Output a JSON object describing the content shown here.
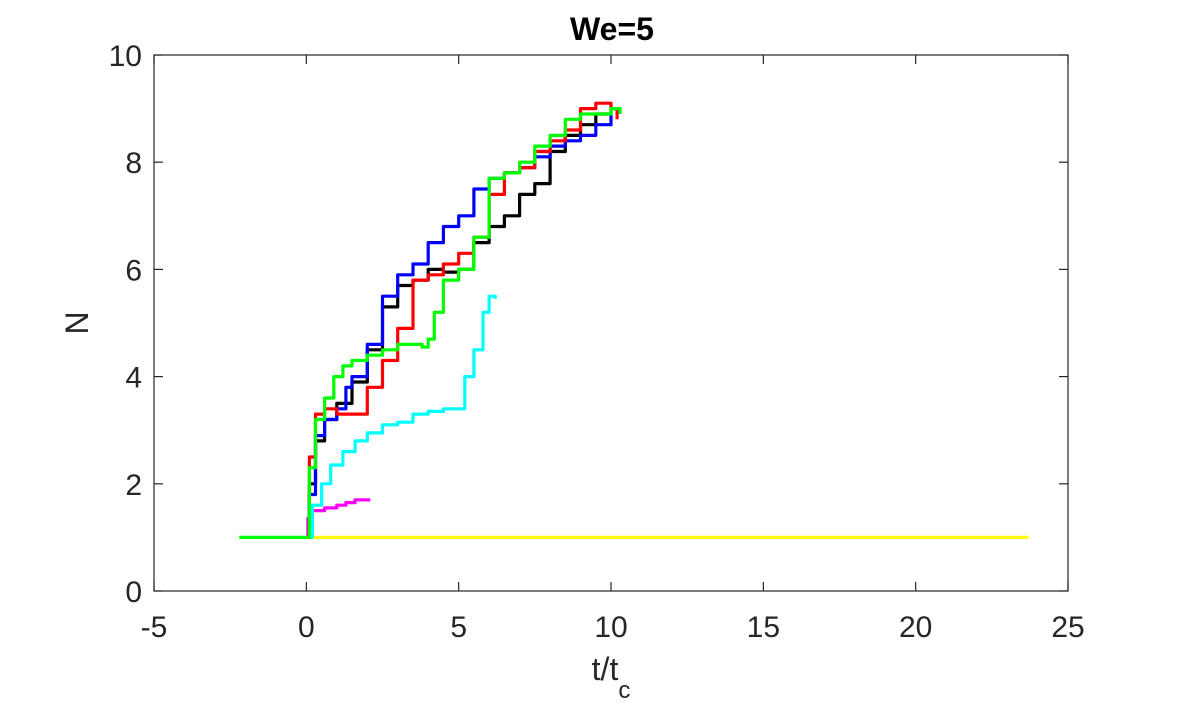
{
  "chart_data": {
    "type": "line",
    "title": "We=5",
    "ylabel": "N",
    "xlabel": {
      "main": "t/t",
      "subscript": "c"
    },
    "xlim": [
      -5,
      25
    ],
    "ylim": [
      0,
      10
    ],
    "xticks": [
      -5,
      0,
      5,
      10,
      15,
      20,
      25
    ],
    "yticks": [
      0,
      2,
      4,
      6,
      8,
      10
    ],
    "grid": false,
    "legend": "none",
    "series": [
      {
        "color": "#ffff00",
        "x": [
          0,
          23.7
        ],
        "y": [
          1,
          1
        ]
      },
      {
        "color": "#ff00ff",
        "x": [
          0,
          0.05,
          0.1,
          0.15,
          0.3,
          0.6,
          1.0,
          1.3,
          1.6,
          2.1
        ],
        "y": [
          1,
          1.35,
          1.5,
          1.5,
          1.5,
          1.55,
          1.6,
          1.65,
          1.7,
          1.7
        ]
      },
      {
        "color": "#00ffff",
        "x": [
          0,
          0.2,
          0.5,
          0.8,
          1.2,
          1.6,
          2.0,
          2.5,
          3.0,
          3.5,
          4.0,
          4.5,
          5.0,
          5.2,
          5.5,
          5.8,
          6.0,
          6.2
        ],
        "y": [
          1,
          1.6,
          2.0,
          2.35,
          2.6,
          2.8,
          2.95,
          3.1,
          3.15,
          3.3,
          3.35,
          3.4,
          3.4,
          4.0,
          4.5,
          5.2,
          5.5,
          5.45
        ]
      },
      {
        "color": "#000000",
        "x": [
          0,
          0.1,
          0.3,
          0.6,
          1.0,
          1.5,
          2.0,
          2.5,
          3.0,
          3.5,
          4.0,
          4.5,
          5.0,
          5.5,
          6.0,
          6.5,
          7.0,
          7.5,
          8.0,
          8.5,
          9.0,
          9.5,
          10.0
        ],
        "y": [
          1,
          2.0,
          2.8,
          3.2,
          3.5,
          3.9,
          4.5,
          5.3,
          5.7,
          5.8,
          6.0,
          5.95,
          6.0,
          6.5,
          6.8,
          7.0,
          7.4,
          7.6,
          8.2,
          8.5,
          8.7,
          8.9,
          9.0
        ]
      },
      {
        "color": "#0000ff",
        "x": [
          0,
          0.1,
          0.3,
          0.6,
          1.0,
          1.3,
          1.5,
          2.0,
          2.5,
          3.0,
          3.5,
          4.0,
          4.5,
          5.0,
          5.5,
          6.0,
          6.5,
          7.0,
          7.5,
          8.0,
          8.5,
          9.0,
          9.5,
          10.0
        ],
        "y": [
          1,
          1.8,
          2.9,
          3.2,
          3.4,
          3.8,
          4.0,
          4.6,
          5.5,
          5.9,
          6.1,
          6.5,
          6.8,
          7.0,
          7.5,
          7.7,
          7.8,
          7.9,
          8.1,
          8.3,
          8.4,
          8.5,
          8.7,
          8.9
        ]
      },
      {
        "color": "#ff0000",
        "x": [
          0,
          0.1,
          0.3,
          0.6,
          1.0,
          1.5,
          2.0,
          2.5,
          3.0,
          3.5,
          4.0,
          4.5,
          5.0,
          5.5,
          6.0,
          6.5,
          7.0,
          7.5,
          8.0,
          8.5,
          9.0,
          9.5,
          10.0,
          10.2
        ],
        "y": [
          1,
          2.5,
          3.3,
          3.4,
          3.3,
          3.3,
          3.8,
          4.3,
          4.9,
          5.8,
          5.9,
          6.1,
          6.3,
          6.6,
          7.4,
          7.8,
          7.9,
          8.2,
          8.4,
          8.6,
          9.0,
          9.1,
          9.0,
          8.8
        ]
      },
      {
        "color": "#00ff00",
        "x": [
          -2.2,
          0,
          0.1,
          0.3,
          0.6,
          0.9,
          1.2,
          1.5,
          2.0,
          2.5,
          3.0,
          3.5,
          3.8,
          4.0,
          4.2,
          4.5,
          5.0,
          5.5,
          6.0,
          6.5,
          7.0,
          7.5,
          8.0,
          8.5,
          9.0,
          9.5,
          10.0,
          10.3
        ],
        "y": [
          1,
          1,
          2.3,
          3.2,
          3.6,
          4.0,
          4.2,
          4.3,
          4.4,
          4.5,
          4.6,
          4.6,
          4.55,
          4.7,
          5.2,
          5.8,
          6.0,
          6.6,
          7.7,
          7.8,
          8.0,
          8.3,
          8.5,
          8.8,
          8.9,
          8.9,
          9.0,
          8.9
        ]
      }
    ]
  }
}
